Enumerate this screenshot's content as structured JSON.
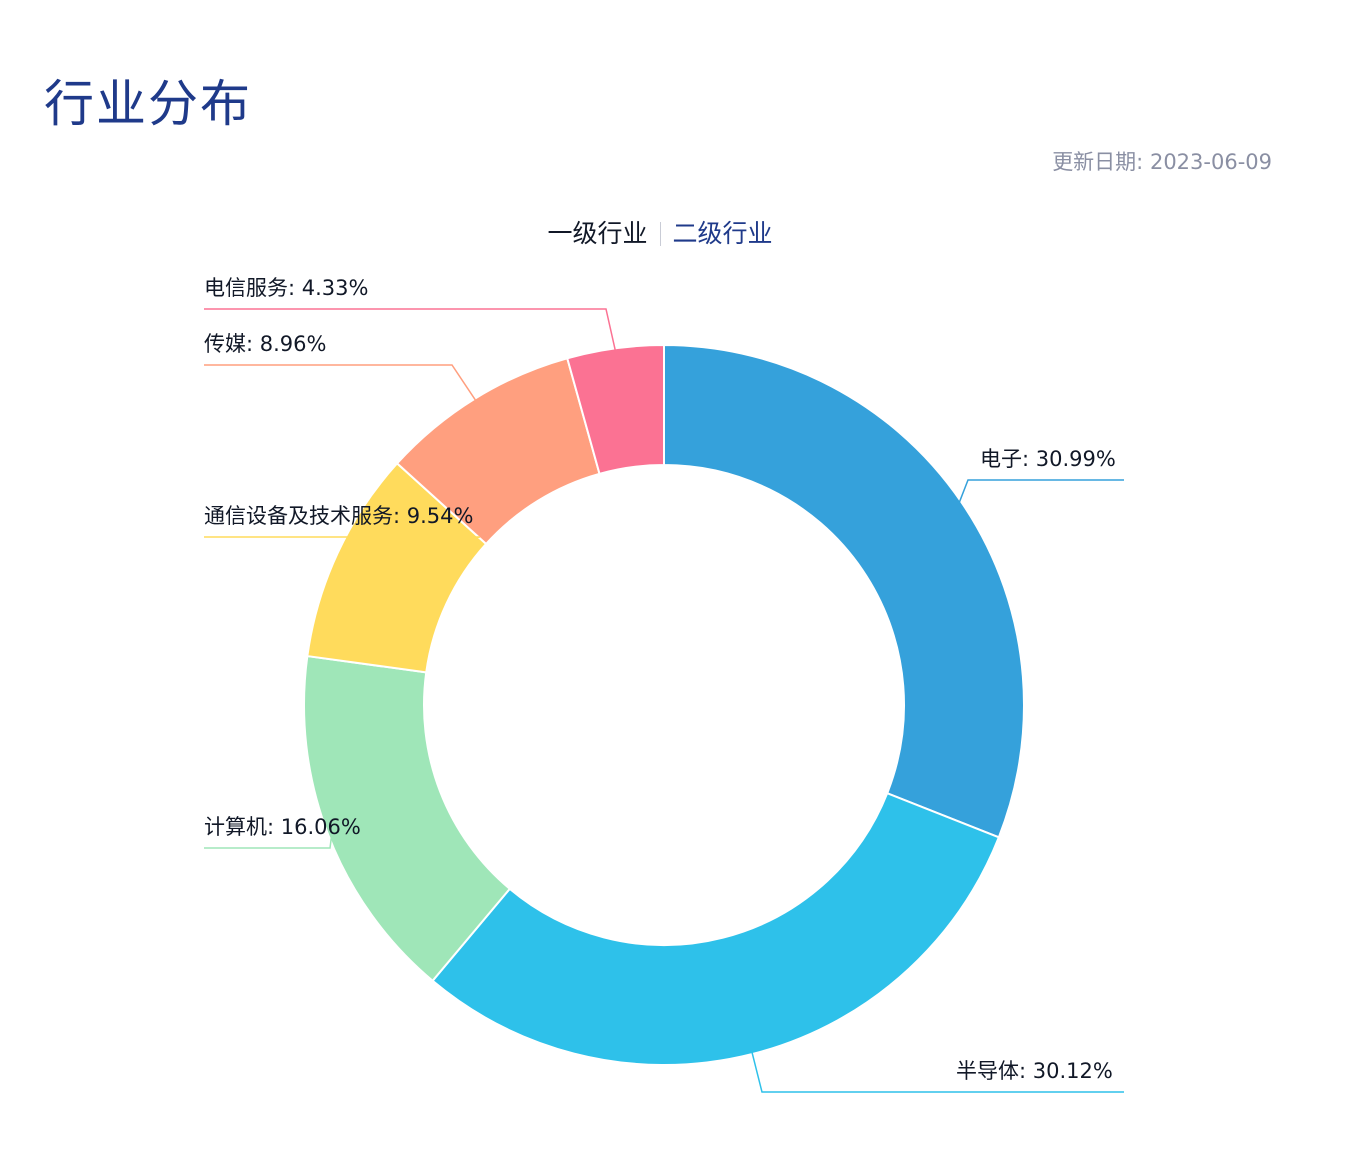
{
  "header": {
    "title": "行业分布",
    "update_label": "更新日期: ",
    "update_date": "2023-06-09"
  },
  "tabs": [
    {
      "label": "一级行业",
      "active": true
    },
    {
      "label": "二级行业",
      "active": false
    }
  ],
  "chart_data": {
    "type": "pie",
    "donut": true,
    "title": "",
    "slices": [
      {
        "name": "电子",
        "value": 30.99,
        "label": "电子: 30.99%",
        "color": "#35a1db"
      },
      {
        "name": "半导体",
        "value": 30.12,
        "label": "半导体: 30.12%",
        "color": "#2ec1ea"
      },
      {
        "name": "计算机",
        "value": 16.06,
        "label": "计算机: 16.06%",
        "color": "#9fe6b8"
      },
      {
        "name": "通信设备及技术服务",
        "value": 9.54,
        "label": "通信设备及技术服务: 9.54%",
        "color": "#ffdb5c"
      },
      {
        "name": "传媒",
        "value": 8.96,
        "label": "传媒: 8.96%",
        "color": "#ff9f7f"
      },
      {
        "name": "电信服务",
        "value": 4.33,
        "label": "电信服务: 4.33%",
        "color": "#fb7293"
      }
    ]
  }
}
